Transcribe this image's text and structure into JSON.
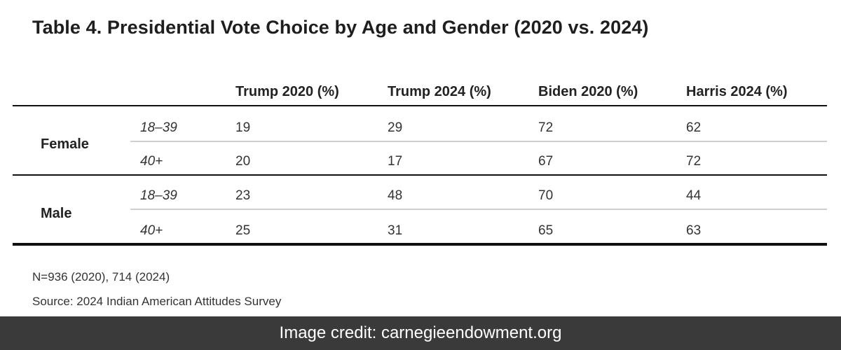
{
  "title": "Table 4. Presidential Vote Choice by Age and Gender (2020 vs. 2024)",
  "columns": [
    "Trump 2020 (%)",
    "Trump 2024 (%)",
    "Biden 2020 (%)",
    "Harris 2024 (%)"
  ],
  "groups": [
    {
      "label": "Female",
      "rows": [
        {
          "age": "18–39",
          "values": [
            "19",
            "29",
            "72",
            "62"
          ]
        },
        {
          "age": "40+",
          "values": [
            "20",
            "17",
            "67",
            "72"
          ]
        }
      ]
    },
    {
      "label": "Male",
      "rows": [
        {
          "age": "18–39",
          "values": [
            "23",
            "48",
            "70",
            "44"
          ]
        },
        {
          "age": "40+",
          "values": [
            "25",
            "31",
            "65",
            "63"
          ]
        }
      ]
    }
  ],
  "notes": {
    "sample": "N=936 (2020), 714 (2024)",
    "source": "Source: 2024 Indian American Attitudes Survey"
  },
  "credit": "Image credit: carnegieendowment.org"
}
